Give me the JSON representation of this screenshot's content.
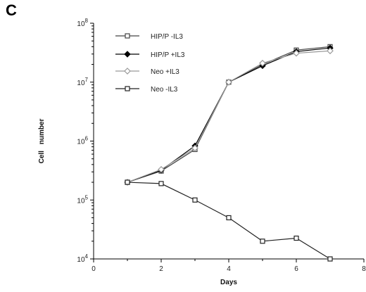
{
  "panel_label": "C",
  "chart_data": {
    "type": "line",
    "xlabel": "Days",
    "ylabel": "Cell number",
    "xlim": [
      0,
      8
    ],
    "ylim": [
      10000,
      100000000
    ],
    "y_scale": "log",
    "x_ticks": [
      "0",
      "2",
      "4",
      "6",
      "8"
    ],
    "y_ticks": [
      {
        "base": "10",
        "exp": "4"
      },
      {
        "base": "10",
        "exp": "5"
      },
      {
        "base": "10",
        "exp": "6"
      },
      {
        "base": "10",
        "exp": "7"
      },
      {
        "base": "10",
        "exp": "8"
      }
    ],
    "grid": false,
    "legend_position": "top-left",
    "x": [
      1,
      2,
      3,
      4,
      5,
      6,
      7
    ],
    "series": [
      {
        "name": "HIP/P -IL3",
        "marker": "open-square",
        "color": "#444444",
        "values": [
          200000,
          310000,
          720000,
          10000000,
          20000000,
          35000000,
          40000000
        ]
      },
      {
        "name": "HIP/P +IL3",
        "marker": "filled-diamond",
        "color": "#000000",
        "values": [
          200000,
          320000,
          830000,
          10000000,
          19000000,
          33000000,
          38000000
        ]
      },
      {
        "name": "Neo +IL3",
        "marker": "open-diamond",
        "color": "#999999",
        "values": [
          200000,
          330000,
          760000,
          10000000,
          21000000,
          31000000,
          34000000
        ]
      },
      {
        "name": "Neo -IL3",
        "marker": "open-square",
        "color": "#222222",
        "values": [
          200000,
          190000,
          100000,
          50000,
          20000,
          22500,
          10000
        ]
      }
    ]
  }
}
